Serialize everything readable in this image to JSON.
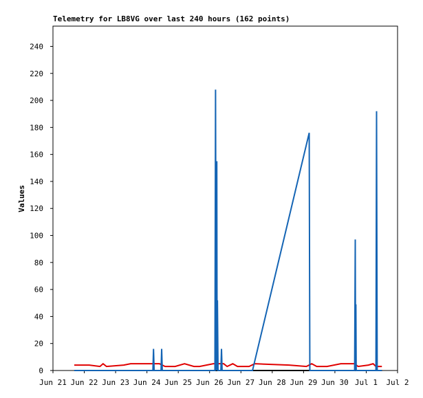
{
  "chart_data": {
    "type": "line",
    "title": "Telemetry for LB8VG over last 240 hours (162 points)",
    "ylabel": "Values",
    "xlim": [
      0,
      11
    ],
    "xticks": [
      {
        "value": 0,
        "label": "Jun 21"
      },
      {
        "value": 1,
        "label": "Jun 22"
      },
      {
        "value": 2,
        "label": "Jun 23"
      },
      {
        "value": 3,
        "label": "Jun 24"
      },
      {
        "value": 4,
        "label": "Jun 25"
      },
      {
        "value": 5,
        "label": "Jun 26"
      },
      {
        "value": 6,
        "label": "Jun 27"
      },
      {
        "value": 7,
        "label": "Jun 28"
      },
      {
        "value": 8,
        "label": "Jun 29"
      },
      {
        "value": 9,
        "label": "Jun 30"
      },
      {
        "value": 10,
        "label": "Jul 1"
      },
      {
        "value": 11,
        "label": "Jul 2"
      }
    ],
    "ylim": [
      0,
      255
    ],
    "yticks": [
      0,
      20,
      40,
      60,
      80,
      100,
      120,
      140,
      160,
      180,
      200,
      220,
      240
    ],
    "series": [
      {
        "color": "#000000",
        "x": [
          0.68,
          10.5
        ],
        "values": [
          0,
          0
        ]
      },
      {
        "color": "#e00000",
        "x": [
          0.68,
          1.16,
          1.5,
          1.6,
          1.71,
          2.26,
          2.48,
          3.4,
          3.58,
          3.9,
          4.2,
          4.5,
          4.68,
          5.12,
          5.45,
          5.56,
          5.74,
          5.89,
          6.26,
          6.44,
          7.54,
          8.09,
          8.26,
          8.42,
          8.75,
          9.19,
          9.63,
          9.74,
          10.07,
          10.22,
          10.31,
          10.5
        ],
        "values": [
          4,
          4,
          3,
          5,
          3,
          4,
          5,
          5,
          3,
          3,
          5,
          3,
          3,
          5,
          5,
          3,
          5,
          3,
          3,
          5,
          4,
          3,
          5,
          3,
          3,
          5,
          5,
          3,
          4,
          5,
          3,
          3
        ]
      },
      {
        "color": "#1464b4",
        "x": [
          0.68,
          3.19,
          3.21,
          3.23,
          3.45,
          3.47,
          3.49,
          5.17,
          5.19,
          5.21,
          5.23,
          5.24,
          5.25,
          5.27,
          5.36,
          5.38,
          5.4,
          6.37,
          8.18,
          8.2,
          9.63,
          9.65,
          9.66,
          9.67,
          9.68,
          10.31,
          10.33,
          10.35,
          10.5
        ],
        "values": [
          0,
          0,
          16,
          0,
          0,
          16,
          0,
          0,
          208,
          0,
          155,
          0,
          52,
          0,
          0,
          16,
          0,
          0,
          176,
          0,
          0,
          97,
          0,
          49,
          0,
          0,
          192,
          0,
          0
        ]
      }
    ]
  }
}
